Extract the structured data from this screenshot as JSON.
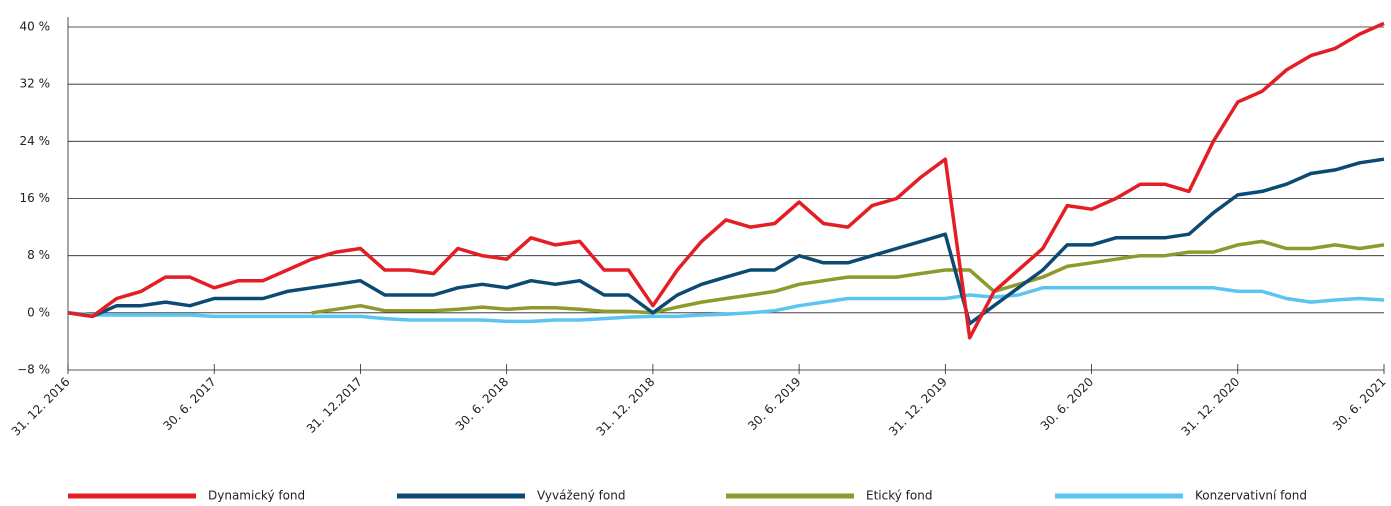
{
  "chart_data": {
    "type": "line",
    "categories": [
      "31. 12. 2016",
      null,
      null,
      null,
      null,
      null,
      "30. 6. 2017",
      null,
      null,
      null,
      null,
      null,
      "31. 12.2017",
      null,
      null,
      null,
      null,
      null,
      "30. 6. 2018",
      null,
      null,
      null,
      null,
      null,
      "31. 12. 2018",
      null,
      null,
      null,
      null,
      null,
      "30. 6. 2019",
      null,
      null,
      null,
      null,
      null,
      "31. 12. 2019",
      null,
      null,
      null,
      null,
      null,
      "30. 6. 2020",
      null,
      null,
      null,
      null,
      null,
      "31. 12. 2020",
      null,
      null,
      null,
      null,
      null,
      "30. 6. 2021"
    ],
    "series": [
      {
        "name": "Dynamický fond",
        "color": "#e31e24",
        "values": [
          0,
          -0.5,
          2,
          3,
          5,
          5,
          3.5,
          4.5,
          4.5,
          6,
          7.5,
          8.5,
          9,
          6,
          6,
          5.5,
          9,
          8,
          7.5,
          10.5,
          9.5,
          10,
          6,
          6,
          1,
          6,
          10,
          13,
          12,
          12.5,
          15.5,
          12.5,
          12,
          15,
          16,
          19,
          21.5,
          -3.5,
          3,
          6,
          9,
          15,
          14.5,
          16,
          18,
          18,
          17,
          24,
          29.5,
          31,
          34,
          36,
          37,
          39,
          40.5
        ]
      },
      {
        "name": "Vyvážený fond",
        "color": "#0d4a73",
        "values": [
          0,
          -0.5,
          1,
          1,
          1.5,
          1,
          2,
          2,
          2,
          3,
          3.5,
          4,
          4.5,
          2.5,
          2.5,
          2.5,
          3.5,
          4,
          3.5,
          4.5,
          4,
          4.5,
          2.5,
          2.5,
          0,
          2.5,
          4,
          5,
          6,
          6,
          8,
          7,
          7,
          8,
          9,
          10,
          11,
          -1.5,
          1,
          3.5,
          6,
          9.5,
          9.5,
          10.5,
          10.5,
          10.5,
          11,
          14,
          16.5,
          17,
          18,
          19.5,
          20,
          21,
          21.5
        ]
      },
      {
        "name": "Etický fond",
        "color": "#8e9a2b",
        "values": [
          null,
          null,
          null,
          null,
          null,
          null,
          null,
          null,
          null,
          null,
          0,
          0.5,
          1,
          0.3,
          0.3,
          0.3,
          0.5,
          0.8,
          0.5,
          0.7,
          0.7,
          0.5,
          0.2,
          0.2,
          0,
          0.8,
          1.5,
          2,
          2.5,
          3,
          4,
          4.5,
          5,
          5,
          5,
          5.5,
          6,
          6,
          3,
          4,
          5,
          6.5,
          7,
          7.5,
          8,
          8,
          8.5,
          8.5,
          9.5,
          10,
          9,
          9,
          9.5,
          9,
          9.5
        ]
      },
      {
        "name": "Konzervativní fond",
        "color": "#5bc5f2",
        "values": [
          0,
          -0.3,
          -0.3,
          -0.3,
          -0.3,
          -0.3,
          -0.5,
          -0.5,
          -0.5,
          -0.5,
          -0.5,
          -0.5,
          -0.5,
          -0.8,
          -1,
          -1,
          -1,
          -1,
          -1.2,
          -1.2,
          -1,
          -1,
          -0.8,
          -0.6,
          -0.5,
          -0.5,
          -0.3,
          -0.2,
          0,
          0.3,
          1,
          1.5,
          2,
          2,
          2,
          2,
          2,
          2.5,
          2.2,
          2.5,
          3.5,
          3.5,
          3.5,
          3.5,
          3.5,
          3.5,
          3.5,
          3.5,
          3,
          3,
          2,
          1.5,
          1.8,
          2,
          1.8
        ]
      }
    ],
    "ylim": [
      -8,
      40
    ],
    "yticks": [
      {
        "value": -8,
        "label": "−8 %"
      },
      {
        "value": 0,
        "label": "0 %"
      },
      {
        "value": 8,
        "label": "8 %"
      },
      {
        "value": 16,
        "label": "16 %"
      },
      {
        "value": 24,
        "label": "24 %"
      },
      {
        "value": 32,
        "label": "32 %"
      },
      {
        "value": 40,
        "label": "40 %"
      }
    ],
    "grid": true,
    "legend": "bottom"
  }
}
